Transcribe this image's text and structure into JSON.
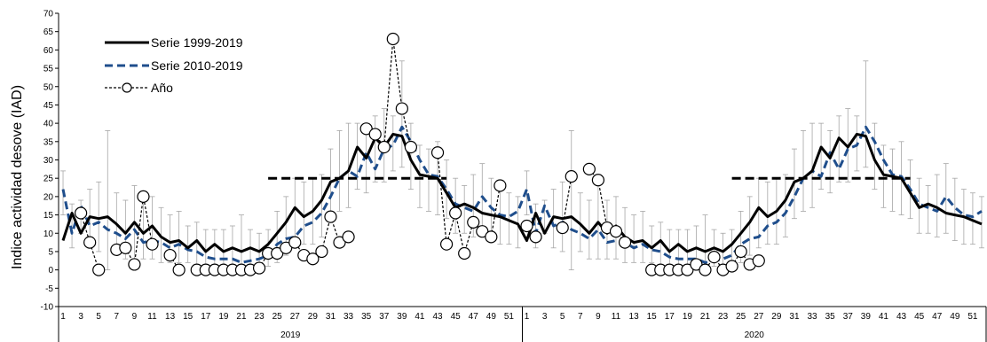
{
  "chart_data": {
    "type": "line",
    "title": "",
    "xlabel": "",
    "ylabel": "Indice actividad desove (IAD)",
    "ylim": [
      -10,
      70
    ],
    "yticks": [
      -10,
      -5,
      0,
      5,
      10,
      15,
      20,
      25,
      30,
      35,
      40,
      45,
      50,
      55,
      60,
      65,
      70
    ],
    "grid": false,
    "legend_position": "top-left",
    "years": [
      "2019",
      "2020"
    ],
    "weeks_per_year": 52,
    "week_tick_labels": [
      "1",
      "3",
      "5",
      "7",
      "9",
      "11",
      "13",
      "15",
      "17",
      "19",
      "21",
      "23",
      "25",
      "27",
      "29",
      "31",
      "33",
      "35",
      "37",
      "39",
      "41",
      "43",
      "45",
      "47",
      "49",
      "51"
    ],
    "threshold": {
      "value": 25,
      "weeks": [
        24,
        44
      ]
    },
    "colors": {
      "serie_1999_2019": "#000000",
      "serie_2010_2019": "#1f4e8c",
      "anio": "#000000",
      "error_bar": "#a6a6a6"
    },
    "series": [
      {
        "name": "Serie  1999-2019",
        "style": "solid",
        "values": [
          8,
          15.5,
          10,
          14.5,
          14,
          14.5,
          12.5,
          10,
          13,
          10,
          12,
          9,
          7.5,
          8,
          6,
          8,
          5,
          7,
          5,
          6,
          5,
          6,
          5,
          7,
          10,
          13,
          17,
          14.5,
          16,
          19,
          24,
          25,
          27,
          33.5,
          30.5,
          36,
          33.5,
          37,
          36.5,
          30,
          26,
          25.5,
          25,
          21,
          17,
          18,
          17,
          15.5,
          15,
          14.5,
          13.5,
          12.5
        ]
      },
      {
        "name": "Serie 2010-2019",
        "style": "dashed",
        "values": [
          22,
          10,
          17.5,
          12,
          13,
          11,
          10,
          8.5,
          11,
          7.5,
          8,
          7.5,
          6,
          7,
          5.5,
          5,
          3.5,
          3,
          3,
          3,
          2,
          2.5,
          3,
          4,
          7,
          8.5,
          9,
          12,
          13,
          15.5,
          20,
          25,
          27,
          25.5,
          32,
          27.5,
          33,
          34,
          39,
          35,
          30,
          26,
          25.5,
          22,
          18,
          17,
          16,
          20,
          17,
          15,
          14.5,
          16
        ]
      },
      {
        "name": "Año",
        "style": "dashed-markers",
        "values_by_year": [
          [
            null,
            null,
            15.5,
            7.5,
            0,
            null,
            5.5,
            6,
            1.5,
            20,
            7,
            null,
            4,
            0,
            null,
            0,
            0,
            0,
            0,
            0,
            0,
            0,
            0.5,
            4.5,
            4.5,
            6,
            7.5,
            4,
            3,
            5,
            14.5,
            7.5,
            9,
            null,
            38.5,
            37,
            33.5,
            63,
            44,
            33.5,
            null,
            null,
            32,
            7,
            15.5,
            4.5,
            13,
            10.5,
            9,
            23,
            null,
            null
          ],
          [
            12,
            9,
            null,
            null,
            11.5,
            25.5,
            null,
            27.5,
            24.5,
            11.5,
            10.5,
            7.5,
            null,
            null,
            0,
            0,
            0,
            0,
            0,
            1.5,
            0,
            3.5,
            0,
            1,
            5,
            1.5,
            2.5,
            null,
            null,
            null,
            null,
            null,
            null,
            null,
            null,
            null,
            null,
            null,
            null,
            null,
            null,
            null,
            null,
            null,
            null,
            null,
            null,
            null,
            null,
            null,
            null,
            null
          ]
        ]
      }
    ],
    "error_bars": {
      "low": [
        15,
        6,
        10,
        6,
        5,
        0,
        5,
        3,
        3,
        3,
        3,
        2,
        2,
        2,
        2,
        1,
        1,
        1,
        1,
        0,
        0,
        1,
        0,
        1,
        2,
        4,
        6,
        7,
        7,
        9,
        14,
        16,
        17,
        22,
        21,
        24,
        24,
        27,
        28,
        22,
        17,
        16,
        15,
        14,
        10,
        10,
        9,
        10,
        8,
        7,
        7,
        6
      ],
      "high": [
        27,
        18,
        19,
        22,
        24,
        38,
        21,
        19,
        23,
        19,
        20,
        17,
        15,
        16,
        12,
        13,
        11,
        11,
        11,
        12,
        15,
        11,
        10,
        11,
        16,
        20,
        25,
        24,
        25,
        26,
        33,
        38,
        40,
        40,
        38,
        42,
        44,
        42,
        57,
        40,
        34,
        33,
        35,
        30,
        25,
        23,
        26,
        29,
        25,
        22,
        21,
        20
      ]
    }
  }
}
